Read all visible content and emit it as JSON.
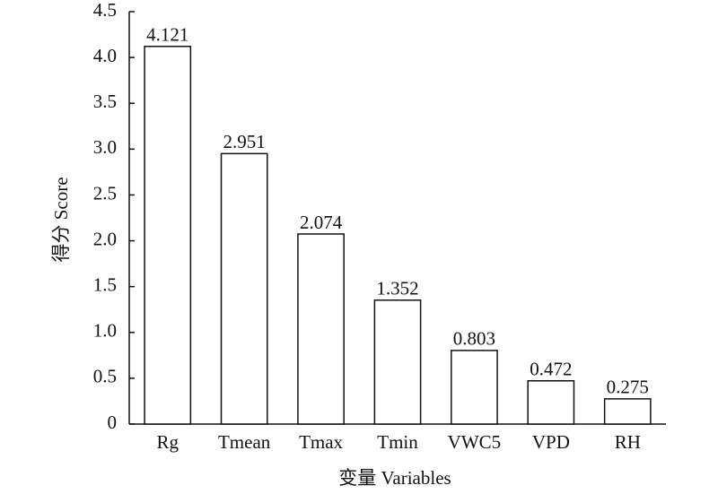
{
  "chart_data": {
    "type": "bar",
    "x_label": "变量 Variables",
    "y_label": "得分 Score",
    "categories": [
      "Rg",
      "Tmean",
      "Tmax",
      "Tmin",
      "VWC5",
      "VPD",
      "RH"
    ],
    "values": [
      4.121,
      2.951,
      2.074,
      1.352,
      0.803,
      0.472,
      0.275
    ],
    "color": "#ffffff",
    "ylim": [
      0,
      4.5
    ],
    "yticks": [
      0,
      0.5,
      {
        "value": 1,
        "label": "1.0"
      },
      1.5,
      {
        "value": 2,
        "label": "2.0"
      },
      2.5,
      {
        "value": 3,
        "label": "3.0"
      },
      3.5,
      {
        "value": 4,
        "label": "4.0"
      },
      4.5
    ]
  }
}
